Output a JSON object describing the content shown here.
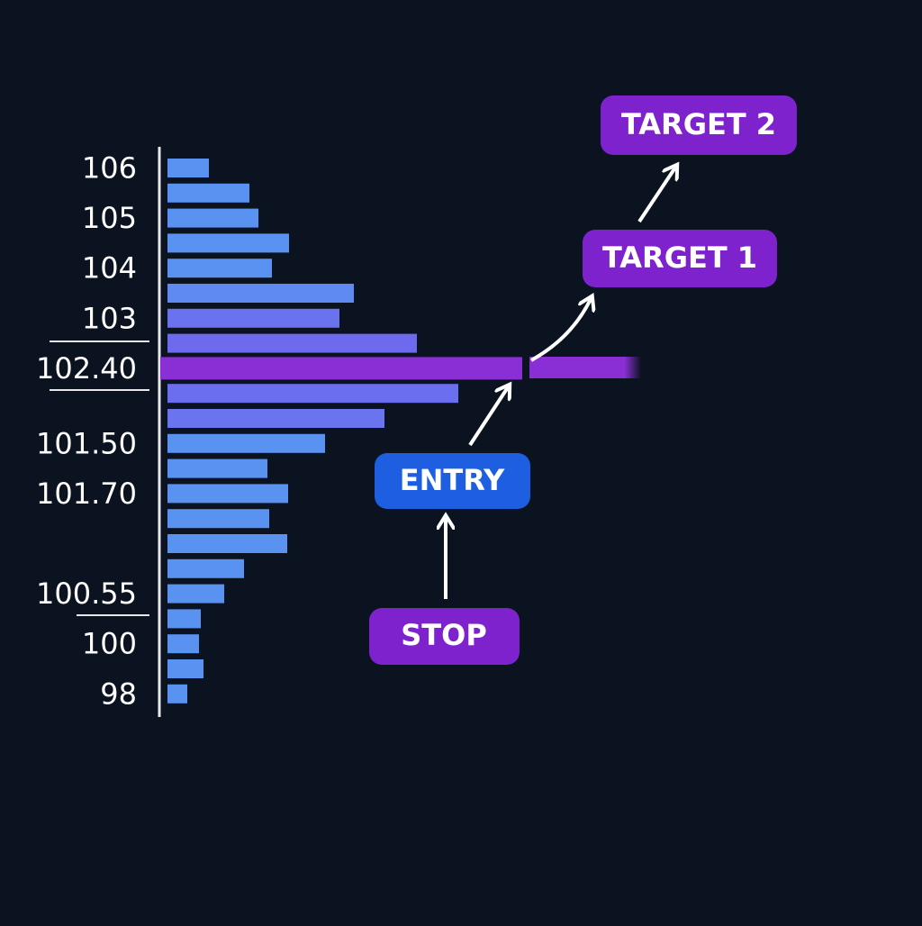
{
  "chart_data": {
    "type": "volume-profile",
    "categories": [
      "106",
      null,
      "105",
      null,
      "104",
      null,
      "103",
      null,
      "102.40",
      null,
      null,
      "101.50",
      null,
      "101.70",
      null,
      null,
      null,
      "100.55",
      null,
      "100",
      null,
      "98"
    ],
    "values": [
      46,
      91,
      101,
      135,
      116,
      207,
      191,
      277,
      394,
      323,
      241,
      175,
      111,
      134,
      113,
      133,
      85,
      63,
      37,
      35,
      40,
      22
    ],
    "colors": [
      "#5a92f2",
      "#5a92f2",
      "#5a92f2",
      "#5a92f2",
      "#5a92f2",
      "#5f8af2",
      "#6a72ee",
      "#6d6aee",
      "#8a2fd6",
      "#6b6eef",
      "#6a74ef",
      "#5a92f2",
      "#5a92f2",
      "#5a92f2",
      "#5a92f2",
      "#5a92f2",
      "#5a92f2",
      "#5a92f2",
      "#5a92f2",
      "#5a92f2",
      "#5a92f2",
      "#5a92f2"
    ],
    "poc_index": 8,
    "annotations": [
      "TARGET 2",
      "TARGET 1",
      "ENTRY",
      "STOP"
    ]
  }
}
